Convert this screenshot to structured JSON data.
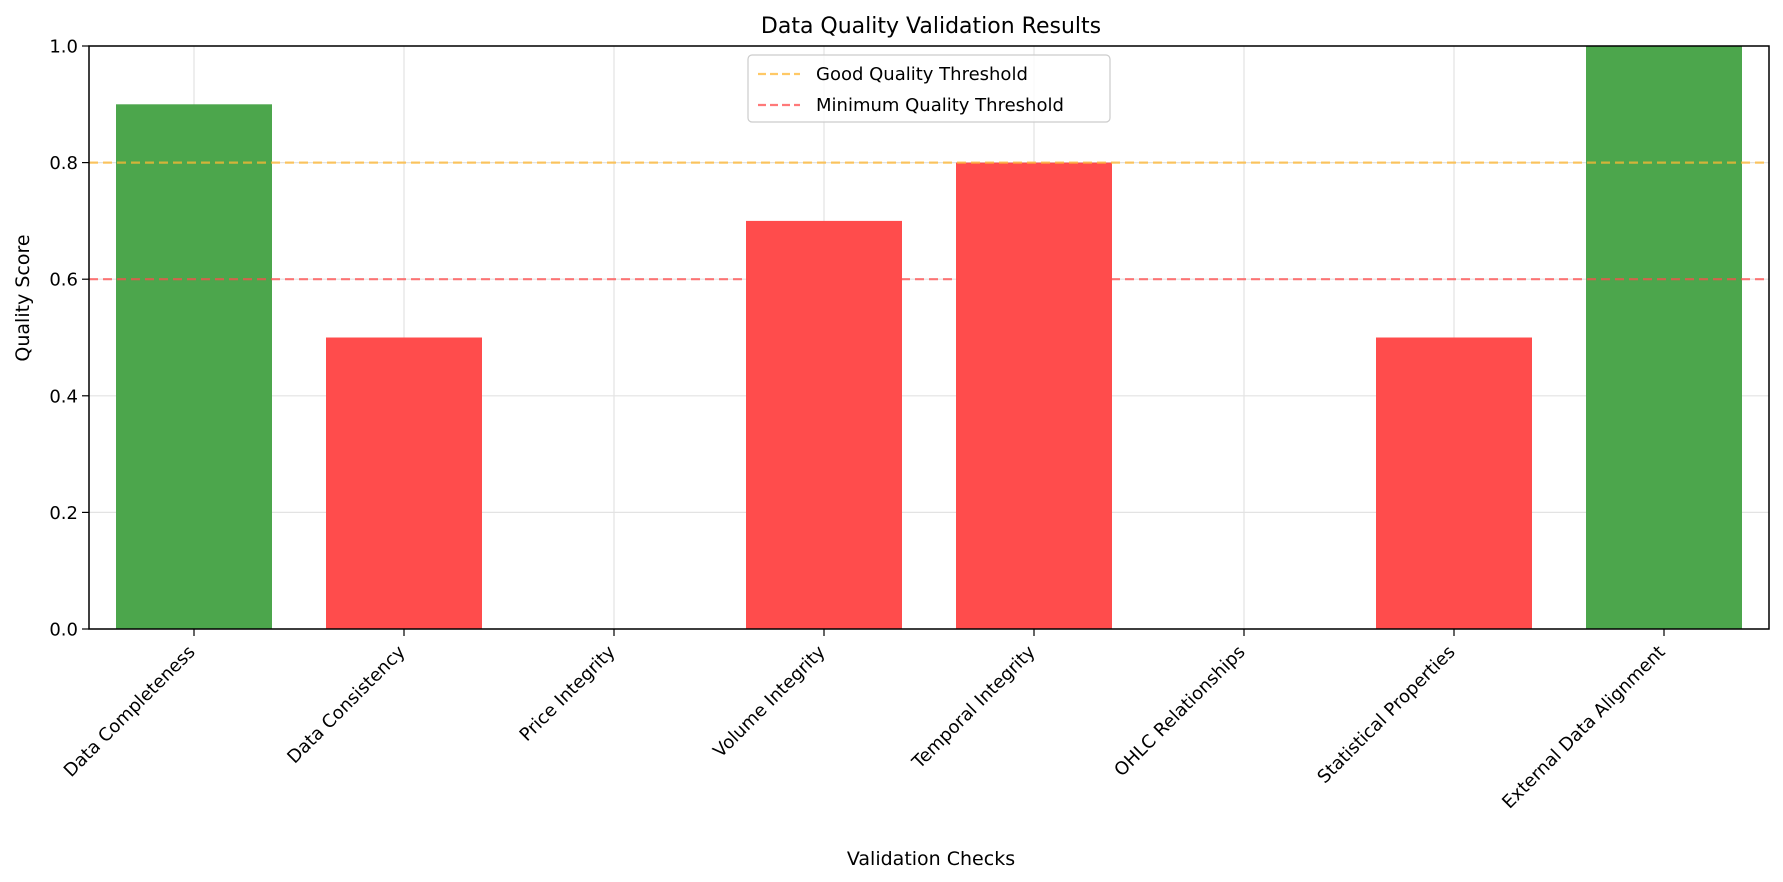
{
  "chart_data": {
    "type": "bar",
    "title": "Data Quality Validation Results",
    "xlabel": "Validation Checks",
    "ylabel": "Quality Score",
    "ylim": [
      0,
      1.0
    ],
    "yticks": [
      "0.0",
      "0.2",
      "0.4",
      "0.6",
      "0.8",
      "1.0"
    ],
    "categories": [
      "Data Completeness",
      "Data Consistency",
      "Price Integrity",
      "Volume Integrity",
      "Temporal Integrity",
      "OHLC Relationships",
      "Statistical Properties",
      "External Data Alignment"
    ],
    "values": [
      0.9,
      0.5,
      0.0,
      0.7,
      0.8,
      0.0,
      0.5,
      1.0
    ],
    "bar_colors": [
      "#4ca64c",
      "#ff4c4c",
      "#ff4c4c",
      "#ff4c4c",
      "#ff4c4c",
      "#ff4c4c",
      "#ff4c4c",
      "#4ca64c"
    ],
    "grid": true,
    "thresholds": [
      {
        "name": "Good Quality Threshold",
        "value": 0.8,
        "color": "#ffb733",
        "style": "dashed"
      },
      {
        "name": "Minimum Quality Threshold",
        "value": 0.6,
        "color": "#ff4c4c",
        "style": "dashed"
      }
    ],
    "legend_position": "top-center"
  }
}
